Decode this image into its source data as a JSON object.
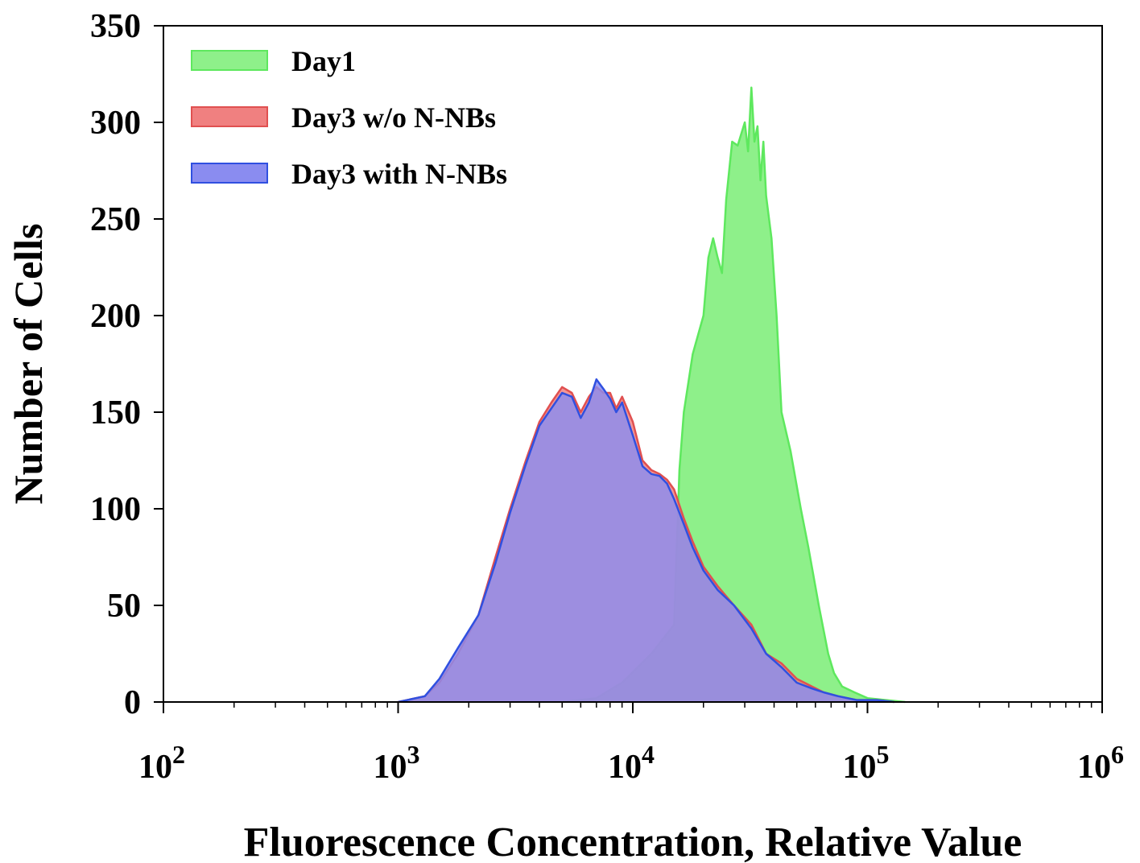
{
  "chart_data": {
    "type": "area",
    "x_scale": "log",
    "xlim": [
      100,
      1000000
    ],
    "ylim": [
      0,
      350
    ],
    "xlabel": "Fluorescence Concentration, Relative Value",
    "ylabel": "Number of Cells",
    "yticks": [
      "0",
      "50",
      "100",
      "150",
      "200",
      "250",
      "300",
      "350"
    ],
    "xticks": [
      {
        "base": "10",
        "exp": "2"
      },
      {
        "base": "10",
        "exp": "3"
      },
      {
        "base": "10",
        "exp": "4"
      },
      {
        "base": "10",
        "exp": "5"
      },
      {
        "base": "10",
        "exp": "6"
      }
    ],
    "legend_position": "top-left",
    "grid": false,
    "series": [
      {
        "name": "Day1",
        "color": "#5ee85e",
        "fill": "#8ef08a",
        "x": [
          5000,
          7000,
          9000,
          12000,
          15000,
          15800,
          16500,
          18000,
          20000,
          21000,
          22000,
          23000,
          24000,
          25000,
          26500,
          28000,
          30000,
          31000,
          32000,
          33000,
          34000,
          35000,
          36000,
          37000,
          39000,
          41000,
          43000,
          47000,
          52000,
          56000,
          62000,
          68000,
          72000,
          78000,
          88000,
          100000,
          120000,
          145000
        ],
        "y": [
          0,
          2,
          10,
          25,
          40,
          120,
          150,
          180,
          200,
          230,
          240,
          230,
          222,
          260,
          290,
          288,
          300,
          285,
          318,
          290,
          298,
          270,
          290,
          262,
          240,
          200,
          150,
          130,
          100,
          80,
          50,
          25,
          15,
          8,
          5,
          2,
          1,
          0
        ]
      },
      {
        "name": "Day3 w/o N-NBs",
        "color": "#e05050",
        "fill": "#f08080",
        "x": [
          1000,
          1300,
          1500,
          1800,
          2200,
          2600,
          3000,
          3500,
          4000,
          4500,
          5000,
          5500,
          6000,
          6500,
          7000,
          7500,
          8000,
          8500,
          9000,
          10000,
          11000,
          12000,
          13000,
          14000,
          15000,
          16500,
          18000,
          20000,
          23000,
          27000,
          32000,
          37000,
          43000,
          50000,
          58000,
          65000,
          75000,
          90000,
          110000,
          130000
        ],
        "y": [
          0,
          3,
          10,
          25,
          45,
          75,
          100,
          125,
          145,
          155,
          163,
          160,
          150,
          158,
          163,
          160,
          160,
          152,
          158,
          145,
          125,
          120,
          118,
          115,
          110,
          95,
          83,
          70,
          60,
          50,
          40,
          25,
          20,
          12,
          8,
          5,
          3,
          1,
          1,
          0
        ]
      },
      {
        "name": "Day3 with N-NBs",
        "color": "#3050e0",
        "fill": "#8a8cf0",
        "x": [
          1000,
          1300,
          1500,
          1800,
          2200,
          2600,
          3000,
          3500,
          4000,
          4500,
          5000,
          5500,
          6000,
          6500,
          7000,
          7500,
          8000,
          8500,
          9000,
          10000,
          11000,
          12000,
          13000,
          14000,
          15000,
          16500,
          18000,
          20000,
          23000,
          27000,
          32000,
          37000,
          43000,
          50000,
          58000,
          65000,
          75000,
          90000,
          110000,
          130000
        ],
        "y": [
          0,
          3,
          12,
          28,
          45,
          72,
          98,
          123,
          143,
          152,
          160,
          158,
          147,
          155,
          167,
          162,
          157,
          150,
          155,
          138,
          122,
          118,
          117,
          113,
          105,
          92,
          80,
          68,
          58,
          50,
          38,
          25,
          18,
          10,
          7,
          5,
          3,
          1,
          1,
          0
        ]
      }
    ]
  }
}
